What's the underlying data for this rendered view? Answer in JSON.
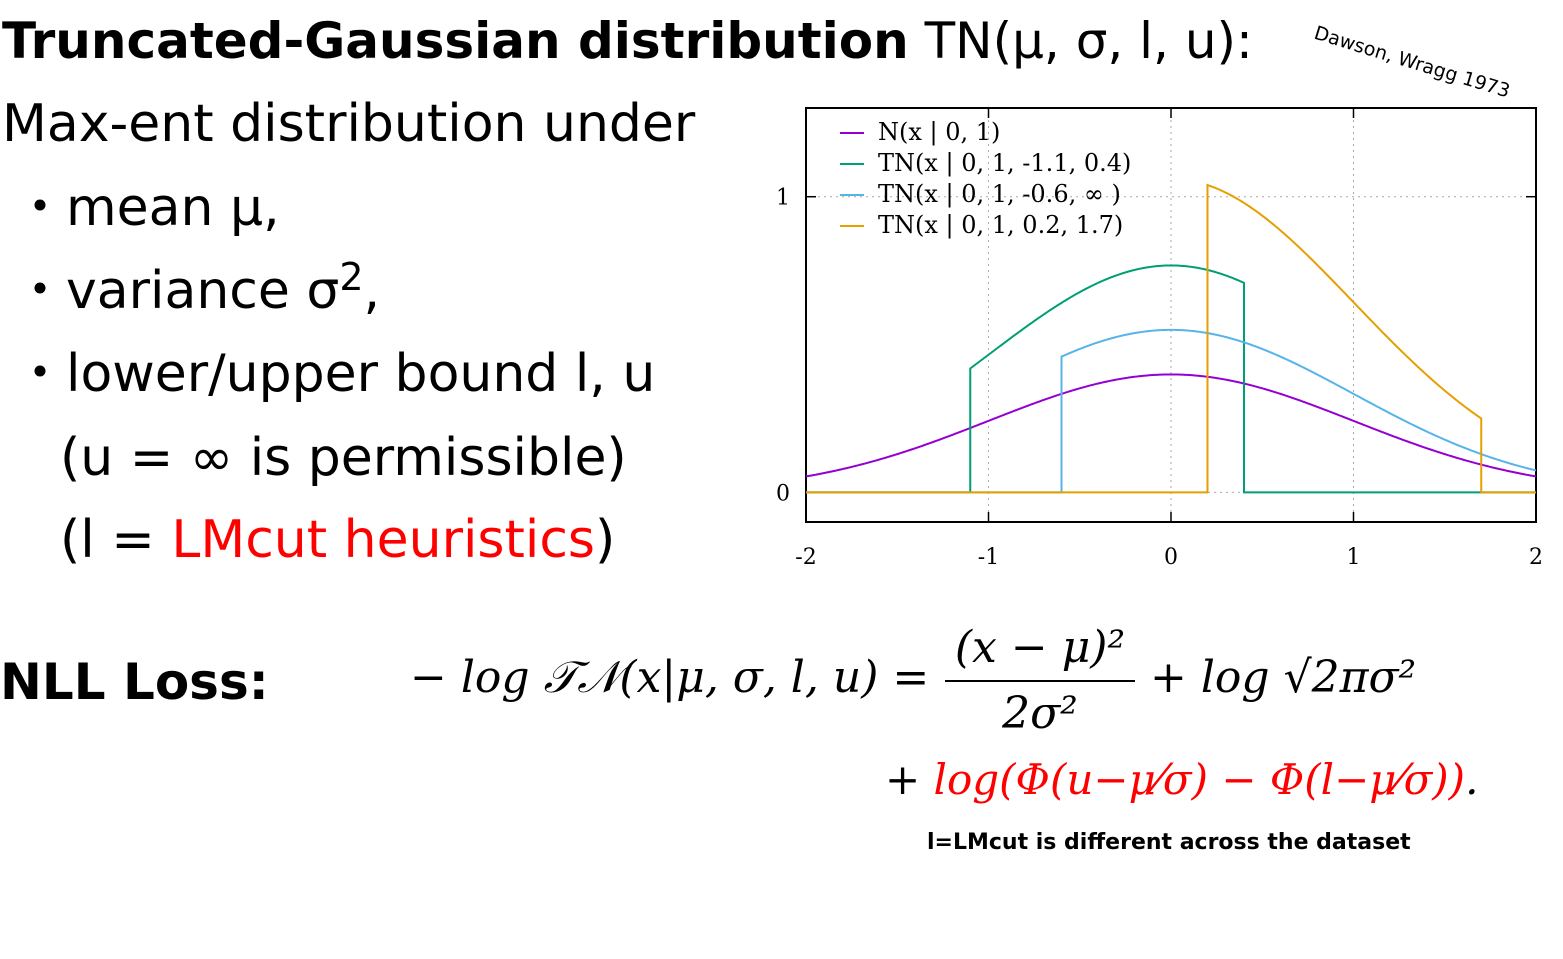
{
  "title": {
    "bold": "Truncated-Gaussian distribution",
    "rest": " TN(μ, σ, l, u):"
  },
  "citation": "Dawson, Wragg 1973",
  "subtitle": "Max-ent distribution under",
  "bullets": {
    "mean": "・mean μ,",
    "variance": "・variance σ",
    "variance_sup": "2",
    "variance_end": ",",
    "bounds": "・lower/upper bound l, u"
  },
  "notes": {
    "n1": "(u = ∞ is permissible)",
    "n2_pre": "(l = ",
    "n2_red": "LMcut heuristics",
    "n2_post": ")"
  },
  "nll": {
    "label": "NLL Loss:",
    "lhs": "− log 𝒯𝒩(x|μ, σ, l, u) =",
    "frac_num": "(x − μ)²",
    "frac_den": "2σ²",
    "rhs": "+ log √2πσ²",
    "line2_plus": "+ ",
    "line2_red": "log(Φ(u−μ⁄σ) − Φ(l−μ⁄σ))",
    "line2_end": ".",
    "footnote": "l=LMcut is different across the dataset"
  },
  "chart_data": {
    "type": "line",
    "xlim": [
      -2,
      2
    ],
    "ylim": [
      -0.1,
      1.3
    ],
    "xticks": [
      "-2",
      "-1",
      "0",
      "1",
      "2"
    ],
    "yticks": [
      "0",
      "1"
    ],
    "grid": true,
    "legend_position": "top-left",
    "series": [
      {
        "name": "N(x | 0, 1)",
        "color": "#9400d3",
        "mu": 0,
        "sigma": 1,
        "l": -2,
        "u": 2
      },
      {
        "name": "TN(x | 0, 1, -1.1, 0.4)",
        "color": "#009e73",
        "mu": 0,
        "sigma": 1,
        "l": -1.1,
        "u": 0.4
      },
      {
        "name": "TN(x | 0, 1, -0.6, ∞ )",
        "color": "#56b4e9",
        "mu": 0,
        "sigma": 1,
        "l": -0.6,
        "u": null
      },
      {
        "name": "TN(x | 0, 1, 0.2, 1.7)",
        "color": "#e69f00",
        "mu": 0,
        "sigma": 1,
        "l": 0.2,
        "u": 1.7
      }
    ]
  }
}
